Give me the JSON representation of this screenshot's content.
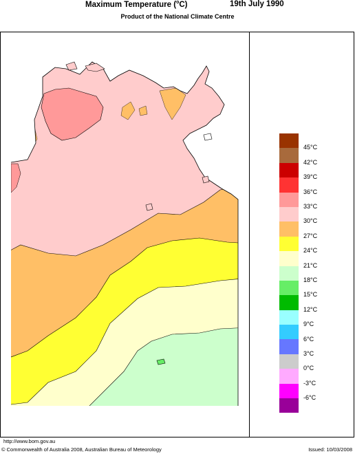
{
  "header": {
    "title": "Maximum Temperature (",
    "title_unit_o": "o",
    "title_unit_c": "C)",
    "date": "19th July 1990",
    "subtitle": "Product of the National Climate Centre"
  },
  "legend": {
    "bands": [
      {
        "color": "#993300",
        "label": "45°C"
      },
      {
        "color": "#a86a3c",
        "label": "42°C"
      },
      {
        "color": "#cc0000",
        "label": "39°C"
      },
      {
        "color": "#ff3333",
        "label": "36°C"
      },
      {
        "color": "#ff9999",
        "label": "33°C"
      },
      {
        "color": "#ffcccc",
        "label": "30°C"
      },
      {
        "color": "#ffbf66",
        "label": "27°C"
      },
      {
        "color": "#ffff33",
        "label": "24°C"
      },
      {
        "color": "#ffffcc",
        "label": "21°C"
      },
      {
        "color": "#ccffcc",
        "label": "18°C"
      },
      {
        "color": "#66ee66",
        "label": "15°C"
      },
      {
        "color": "#00bb00",
        "label": "12°C"
      },
      {
        "color": "#99ffff",
        "label": "9°C"
      },
      {
        "color": "#33ccff",
        "label": "6°C"
      },
      {
        "color": "#6677ff",
        "label": "3°C"
      },
      {
        "color": "#cccccc",
        "label": "0°C"
      },
      {
        "color": "#ffaaff",
        "label": "-3°C"
      },
      {
        "color": "#ff00ff",
        "label": "-6°C"
      },
      {
        "color": "#990099",
        "label": ""
      }
    ]
  },
  "map_zones": [
    "30-33°C",
    "33-36°C",
    "27-30°C",
    "24-27°C",
    "21-24°C",
    "18-21°C"
  ],
  "footer": {
    "url": "http://www.bom.gov.au",
    "copyright": "© Commonwealth of Australia 2008, Australian Bureau of Meteorology",
    "issued": "Issued: 10/03/2008"
  }
}
